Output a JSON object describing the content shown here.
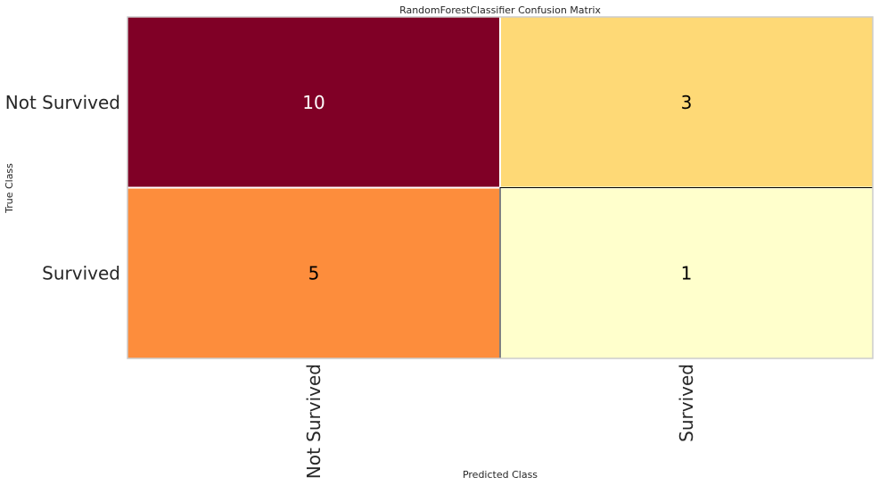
{
  "chart_data": {
    "type": "heatmap",
    "title": "RandomForestClassifier Confusion Matrix",
    "xlabel": "Predicted Class",
    "ylabel": "True Class",
    "x_categories": [
      "Not Survived",
      "Survived"
    ],
    "y_categories": [
      "Not Survived",
      "Survived"
    ],
    "values": [
      [
        10,
        3
      ],
      [
        5,
        1
      ]
    ],
    "colors": {
      "cells": [
        [
          "#800026",
          "#fed976"
        ],
        [
          "#fd8d3c",
          "#ffffcc"
        ]
      ],
      "cell_text": [
        [
          "#ffffff",
          "#000000"
        ],
        [
          "#000000",
          "#000000"
        ]
      ],
      "highlight_border": "#000000",
      "frame": "#cccccc"
    },
    "grid": false
  }
}
